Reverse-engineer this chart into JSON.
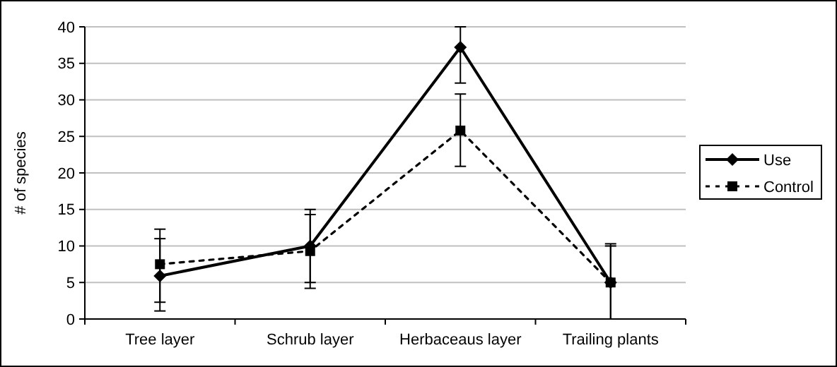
{
  "chart_data": {
    "type": "line",
    "ylabel": "# of species",
    "categories": [
      "Tree layer",
      "Schrub layer",
      "Herbaceaus layer",
      "Trailing plants"
    ],
    "series": [
      {
        "name": "Use",
        "color": "#000000",
        "values": [
          5.9,
          10,
          37.2,
          5
        ],
        "errors": [
          [
            2.3,
            11
          ],
          [
            5,
            15
          ],
          [
            32.3,
            40
          ],
          [
            0,
            10
          ]
        ],
        "marker": "diamond",
        "line_style": "solid"
      },
      {
        "name": "Control",
        "color": "#000000",
        "values": [
          7.5,
          9.3,
          25.8,
          5
        ],
        "errors": [
          [
            1.1,
            12.3
          ],
          [
            4.2,
            14.3
          ],
          [
            20.9,
            30.8
          ],
          [
            0,
            10.3
          ]
        ],
        "marker": "square",
        "line_style": "dashed"
      }
    ],
    "ylim": [
      0,
      40
    ],
    "yticks": [
      0,
      5,
      10,
      15,
      20,
      25,
      30,
      35,
      40
    ],
    "grid": "y",
    "legend": "right"
  }
}
